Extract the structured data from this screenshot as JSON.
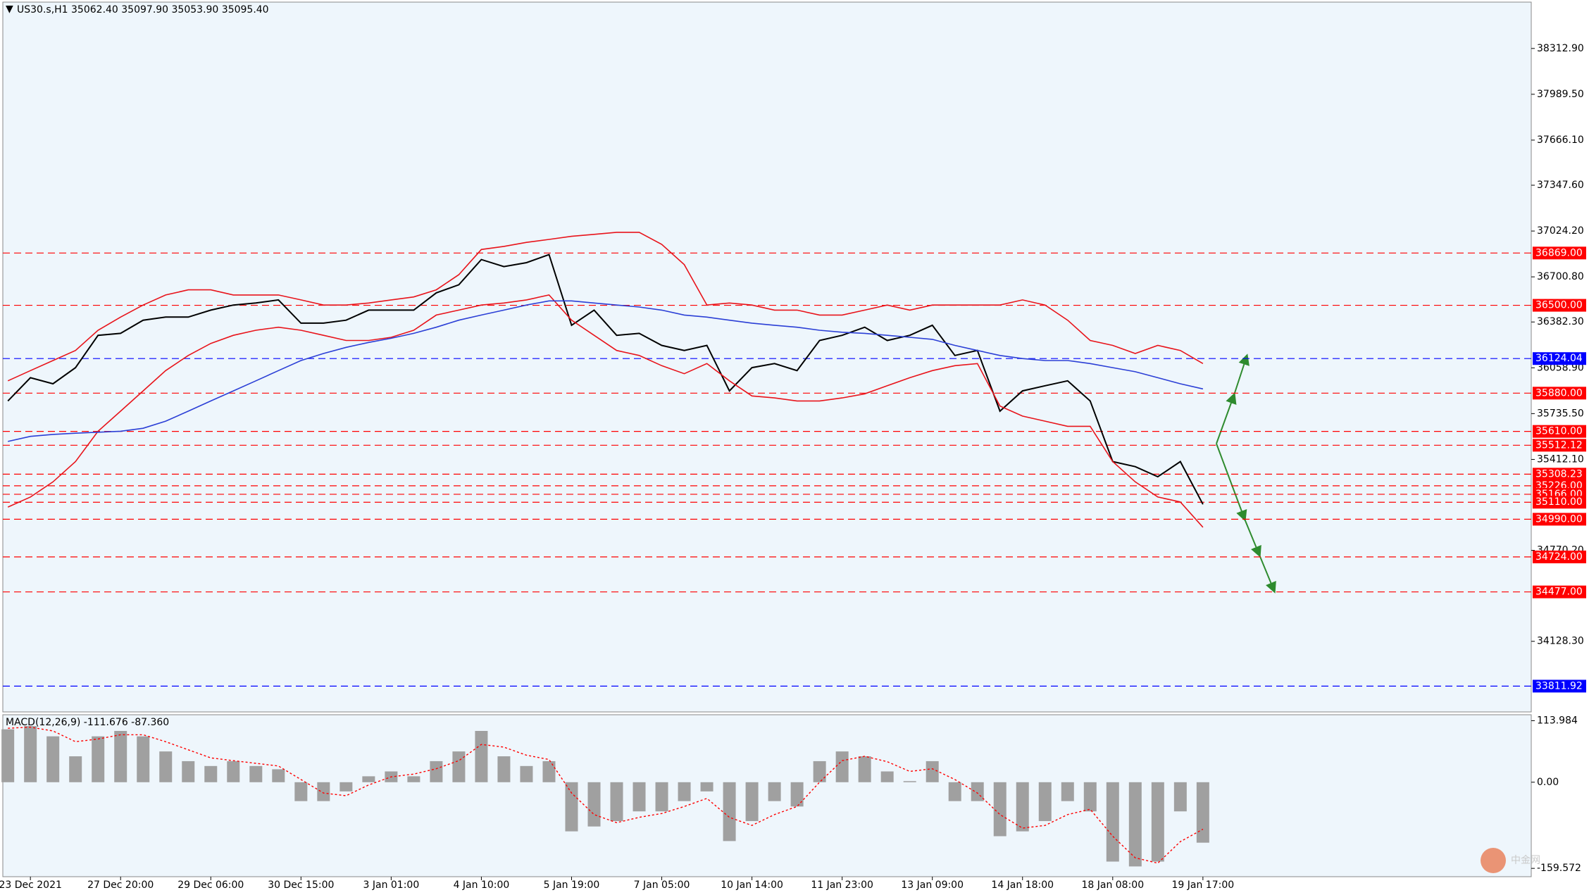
{
  "chart_data": [
    {
      "type": "line",
      "title": "US30.s,H1  35062.40 35097.90 35053.90 35095.40",
      "categories": [
        null,
        "23 Dec 2021",
        null,
        null,
        null,
        "27 Dec 20:00",
        null,
        null,
        null,
        "29 Dec 06:00",
        null,
        null,
        null,
        "30 Dec 15:00",
        null,
        null,
        null,
        "3 Jan 01:00",
        null,
        null,
        null,
        "4 Jan 10:00",
        null,
        null,
        null,
        "5 Jan 19:00",
        null,
        null,
        null,
        "7 Jan 05:00",
        null,
        null,
        null,
        "10 Jan 14:00",
        null,
        null,
        null,
        "11 Jan 23:00",
        null,
        null,
        null,
        "13 Jan 09:00",
        null,
        null,
        null,
        "14 Jan 18:00",
        null,
        null,
        null,
        "18 Jan 08:00",
        null,
        null,
        null,
        "19 Jan 17:00"
      ],
      "series": [
        {
          "color": "#000000",
          "values": [
            35825,
            35989,
            35946,
            36060,
            36288,
            36302,
            36395,
            36417,
            36417,
            36466,
            36502,
            36516,
            36538,
            36374,
            36374,
            36395,
            36466,
            36466,
            36466,
            36588,
            36645,
            36823,
            36773,
            36801,
            36858,
            36359,
            36466,
            36288,
            36302,
            36217,
            36181,
            36217,
            35896,
            36060,
            36089,
            36039,
            36252,
            36288,
            36345,
            36252,
            36288,
            36359,
            36146,
            36181,
            35753,
            35896,
            35932,
            35967,
            35825,
            35397,
            35361,
            35290,
            35397,
            35095
          ]
        },
        {
          "color": "#e8141b",
          "values": [
            35967,
            36039,
            36110,
            36181,
            36324,
            36417,
            36502,
            36573,
            36609,
            36609,
            36573,
            36573,
            36573,
            36538,
            36502,
            36502,
            36516,
            36538,
            36559,
            36609,
            36716,
            36894,
            36916,
            36944,
            36965,
            36987,
            37001,
            37015,
            37015,
            36930,
            36787,
            36502,
            36516,
            36502,
            36466,
            36466,
            36431,
            36431,
            36466,
            36502,
            36466,
            36502,
            36502,
            36502,
            36502,
            36538,
            36502,
            36395,
            36252,
            36217,
            36160,
            36217,
            36181,
            36089
          ]
        },
        {
          "color": "#e8141b",
          "values": [
            35076,
            35147,
            35254,
            35397,
            35611,
            35753,
            35896,
            36039,
            36146,
            36231,
            36288,
            36324,
            36345,
            36324,
            36288,
            36252,
            36252,
            36274,
            36324,
            36431,
            36466,
            36502,
            36516,
            36538,
            36573,
            36395,
            36288,
            36181,
            36146,
            36074,
            36017,
            36089,
            35967,
            35860,
            35846,
            35825,
            35825,
            35846,
            35875,
            35932,
            35989,
            36039,
            36074,
            36089,
            35789,
            35718,
            35682,
            35646,
            35646,
            35397,
            35254,
            35147,
            35112,
            34933
          ]
        },
        {
          "color": "#2b3fd6",
          "values": [
            35539,
            35575,
            35589,
            35597,
            35604,
            35611,
            35632,
            35682,
            35753,
            35825,
            35896,
            35967,
            36039,
            36110,
            36160,
            36203,
            36238,
            36267,
            36302,
            36345,
            36395,
            36431,
            36466,
            36502,
            36531,
            36531,
            36516,
            36502,
            36488,
            36466,
            36431,
            36417,
            36395,
            36374,
            36359,
            36345,
            36324,
            36310,
            36302,
            36288,
            36274,
            36260,
            36217,
            36181,
            36146,
            36124,
            36110,
            36110,
            36089,
            36060,
            36031,
            35989,
            35946,
            35910
          ]
        }
      ],
      "ylim": [
        33630,
        38640
      ],
      "yticks": [
        {
          "value": 38312.9,
          "label": "38312.90"
        },
        {
          "value": 37989.5,
          "label": "37989.50"
        },
        {
          "value": 37666.1,
          "label": "37666.10"
        },
        {
          "value": 37347.6,
          "label": "37347.60"
        },
        {
          "value": 37024.2,
          "label": "37024.20"
        },
        {
          "value": 36700.8,
          "label": "36700.80"
        },
        {
          "value": 36382.3,
          "label": "36382.30"
        },
        {
          "value": 36058.9,
          "label": "36058.90"
        },
        {
          "value": 35735.5,
          "label": "35735.50"
        },
        {
          "value": 35412.1,
          "label": "35412.10"
        },
        {
          "value": 34770.2,
          "label": "34770.20"
        },
        {
          "value": 34128.3,
          "label": "34128.30"
        }
      ],
      "hlines": [
        {
          "value": 36869,
          "label": "36869.00",
          "color": "#ff0000"
        },
        {
          "value": 36500,
          "label": "36500.00",
          "color": "#ff0000"
        },
        {
          "value": 36124.04,
          "label": "36124.04",
          "color": "#0000ff"
        },
        {
          "value": 35880,
          "label": "35880.00",
          "color": "#ff0000"
        },
        {
          "value": 35610,
          "label": "35610.00",
          "color": "#ff0000"
        },
        {
          "value": 35512.12,
          "label": "35512.12",
          "color": "#ff0000"
        },
        {
          "value": 35308.23,
          "label": "35308.23",
          "color": "#ff0000"
        },
        {
          "value": 35226,
          "label": "35226.00",
          "color": "#ff0000"
        },
        {
          "value": 35166,
          "label": "35166.00",
          "color": "#ff0000"
        },
        {
          "value": 35110,
          "label": "35110.00",
          "color": "#ff0000"
        },
        {
          "value": 34990,
          "label": "34990.00",
          "color": "#ff0000"
        },
        {
          "value": 34724,
          "label": "34724.00",
          "color": "#ff0000"
        },
        {
          "value": 34477,
          "label": "34477.00",
          "color": "#ff0000"
        },
        {
          "value": 33811.92,
          "label": "33811.92",
          "color": "#0000ff"
        }
      ],
      "watermark": "中金网"
    },
    {
      "type": "bar",
      "title": "MACD(12,26,9) -111.676 -87.360",
      "series": [
        {
          "color": "#a0a0a0",
          "values": [
            98,
            104,
            85,
            48,
            85,
            95,
            85,
            57,
            39,
            30,
            39,
            30,
            24,
            -35,
            -35,
            -17,
            11,
            20,
            11,
            39,
            57,
            95,
            48,
            30,
            39,
            -91,
            -82,
            -72,
            -54,
            -54,
            -35,
            -17,
            -109,
            -72,
            -35,
            -45,
            39,
            57,
            48,
            20,
            2,
            39,
            -35,
            -35,
            -100,
            -91,
            -72,
            -35,
            -54,
            -147,
            -156,
            -147,
            -54,
            -112
          ]
        },
        {
          "color": "#ff0000",
          "values": [
            100,
            102,
            95,
            75,
            80,
            88,
            88,
            75,
            60,
            45,
            40,
            35,
            30,
            5,
            -20,
            -25,
            -5,
            10,
            15,
            25,
            40,
            70,
            65,
            50,
            42,
            -20,
            -60,
            -75,
            -65,
            -58,
            -45,
            -30,
            -65,
            -80,
            -60,
            -45,
            0,
            40,
            48,
            38,
            20,
            25,
            5,
            -20,
            -60,
            -85,
            -80,
            -60,
            -50,
            -100,
            -140,
            -150,
            -110,
            -87
          ]
        }
      ],
      "ylim": [
        -175,
        125
      ],
      "yticks": [
        113.984,
        {
          "value": 0,
          "label": "0.00"
        },
        -159.572
      ]
    }
  ]
}
